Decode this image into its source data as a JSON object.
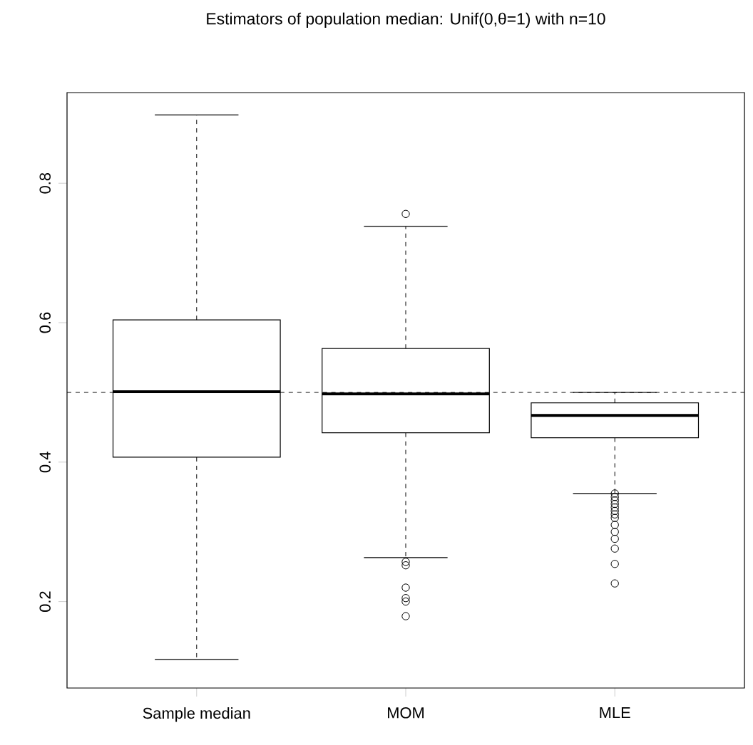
{
  "chart_data": {
    "type": "box",
    "title": "Estimators of population median: Unif(0,θ=1) with n=10",
    "categories": [
      "Sample median",
      "MOM",
      "MLE"
    ],
    "boxes": [
      {
        "low": 0.117,
        "q1": 0.407,
        "median": 0.501,
        "q3": 0.604,
        "high": 0.898
      },
      {
        "low": 0.263,
        "q1": 0.442,
        "median": 0.498,
        "q3": 0.563,
        "high": 0.738,
        "outliers": [
          0.756,
          0.257,
          0.252,
          0.22,
          0.205,
          0.2,
          0.179
        ]
      },
      {
        "low": 0.355,
        "q1": 0.435,
        "median": 0.467,
        "q3": 0.485,
        "high": 0.5,
        "outliers": [
          0.355,
          0.35,
          0.345,
          0.34,
          0.335,
          0.33,
          0.325,
          0.32,
          0.31,
          0.3,
          0.29,
          0.276,
          0.254,
          0.226
        ]
      }
    ],
    "ylim": [
      0.076,
      0.93
    ],
    "yticks": [
      0.2,
      0.4,
      0.6,
      0.8
    ],
    "ref_lines": [
      {
        "axis": "y",
        "value": 0.5,
        "line_style": "dashed"
      }
    ],
    "marker": "circle"
  }
}
